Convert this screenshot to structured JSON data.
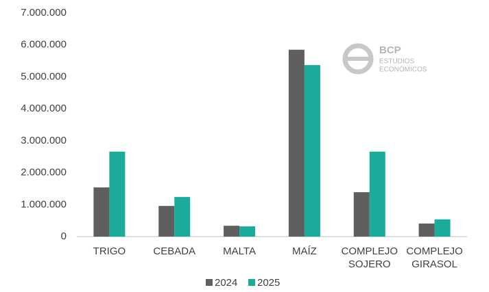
{
  "chart_data": {
    "type": "bar",
    "categories": [
      "TRIGO",
      "CEBADA",
      "MALTA",
      "MAÍZ",
      "COMPLEJO SOJERO",
      "COMPLEJO GIRASOL"
    ],
    "series": [
      {
        "name": "2024",
        "color": "#5f5f5f",
        "values": [
          1540000,
          960000,
          340000,
          5850000,
          1390000,
          410000
        ]
      },
      {
        "name": "2025",
        "color": "#1aab9b",
        "values": [
          2660000,
          1240000,
          320000,
          5370000,
          2660000,
          540000
        ]
      }
    ],
    "ylim": [
      0,
      7000000
    ],
    "yticks": [
      0,
      {
        "value": 1000000,
        "label": "1.000.000"
      },
      {
        "value": 2000000,
        "label": "2.000.000"
      },
      {
        "value": 3000000,
        "label": "3.000.000"
      },
      {
        "value": 4000000,
        "label": "4.000.000"
      },
      {
        "value": 5000000,
        "label": "5.000.000"
      },
      {
        "value": 6000000,
        "label": "6.000.000"
      },
      {
        "value": 7000000,
        "label": "7.000.000"
      }
    ],
    "grid": false,
    "legend": "bottom"
  },
  "logo": {
    "name": "BCP",
    "line1": "ESTUDIOS",
    "line2": "ECONÓMICOS"
  }
}
